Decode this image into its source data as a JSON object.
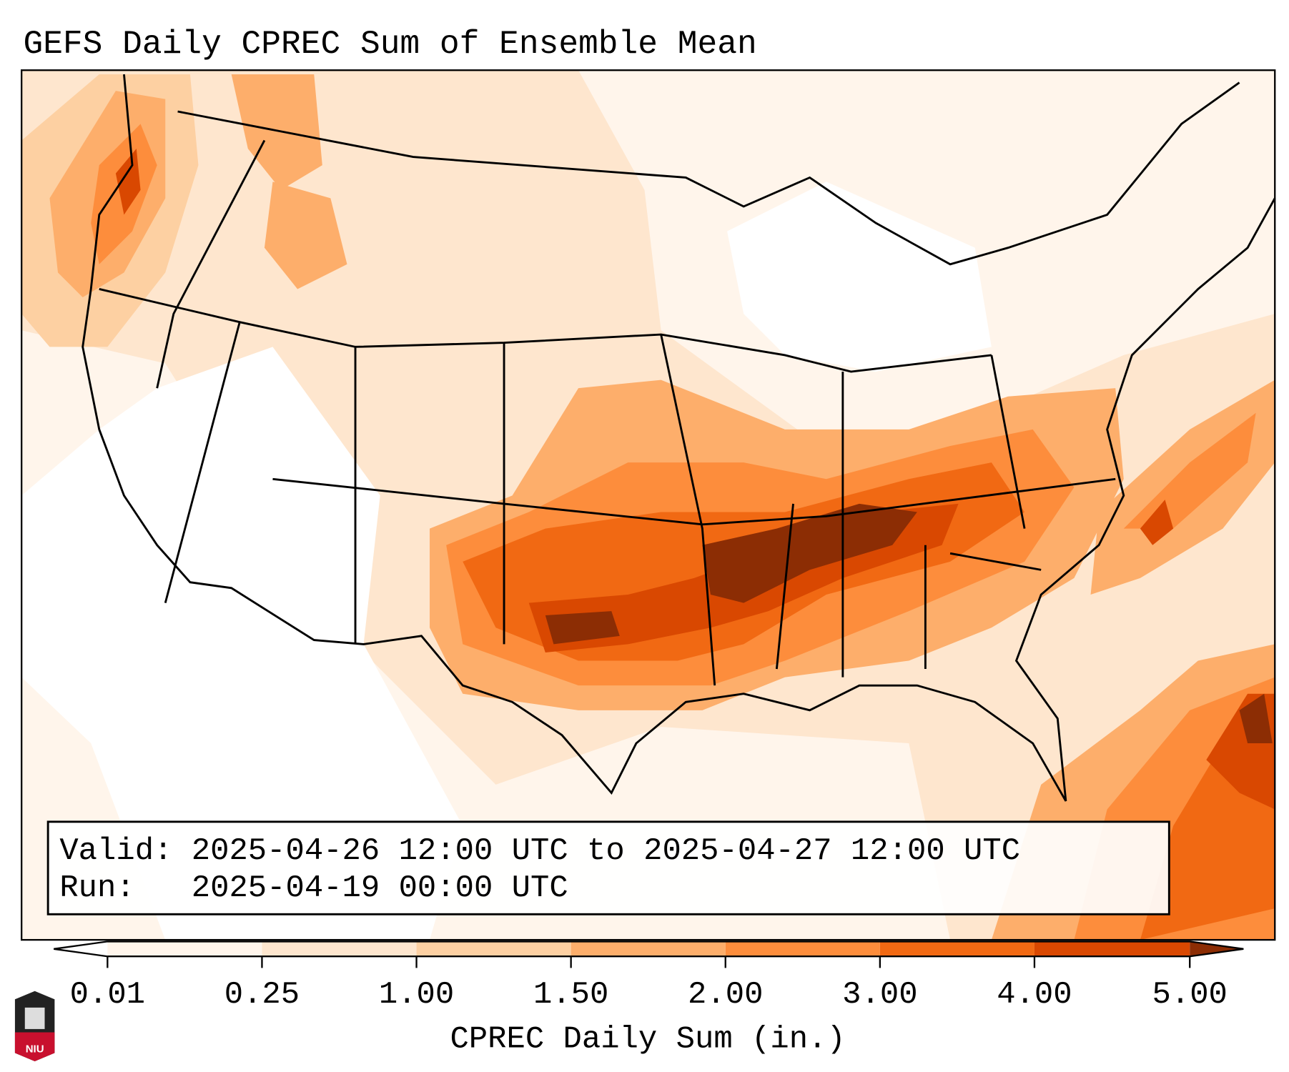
{
  "title": "GEFS Daily CPREC Sum of Ensemble Mean",
  "info": {
    "valid": "Valid: 2025-04-26 12:00 UTC to 2025-04-27 12:00 UTC",
    "run": "Run:   2025-04-19 00:00 UTC"
  },
  "colorbar": {
    "label": "CPREC Daily Sum (in.)",
    "ticks": [
      "0.01",
      "0.25",
      "1.00",
      "1.50",
      "2.00",
      "3.00",
      "4.00",
      "5.00"
    ],
    "under_color": "#ffffff",
    "bin_colors": [
      "#fff5eb",
      "#fee6ce",
      "#fdd0a2",
      "#fdae6b",
      "#fd8d3c",
      "#f16913",
      "#d94801"
    ],
    "over_color": "#8c2d04"
  },
  "logo": {
    "text": "NIU",
    "color": "#c8102e"
  }
}
